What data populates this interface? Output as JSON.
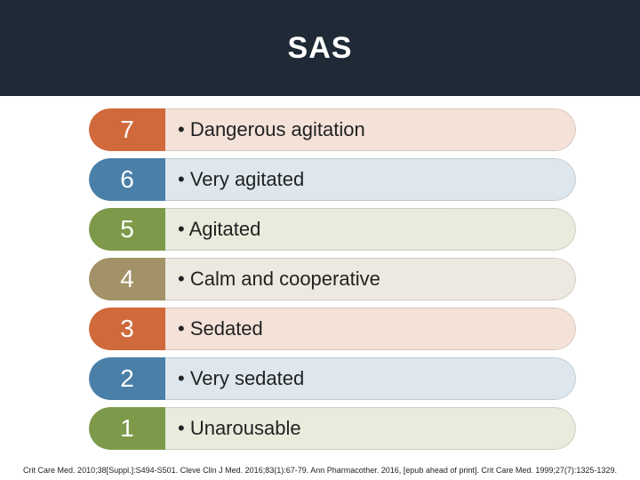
{
  "header": {
    "title": "SAS"
  },
  "rows": [
    {
      "num": "7",
      "desc": "• Dangerous agitation",
      "num_bg": "#d0693b",
      "desc_bg": "#f4e2d8"
    },
    {
      "num": "6",
      "desc": "• Very agitated",
      "num_bg": "#4a80a8",
      "desc_bg": "#dde7ed"
    },
    {
      "num": "5",
      "desc": "• Agitated",
      "num_bg": "#7c9a4a",
      "desc_bg": "#e7ecdc"
    },
    {
      "num": "4",
      "desc": "• Calm and cooperative",
      "num_bg": "#a39168",
      "desc_bg": "#ede9e0"
    },
    {
      "num": "3",
      "desc": "• Sedated",
      "num_bg": "#d0693b",
      "desc_bg": "#f4e2d8"
    },
    {
      "num": "2",
      "desc": "• Very sedated",
      "num_bg": "#4a80a8",
      "desc_bg": "#dde7ed"
    },
    {
      "num": "1",
      "desc": "• Unarousable",
      "num_bg": "#7c9a4a",
      "desc_bg": "#e7ecdc"
    }
  ],
  "citation": "Crit Care Med. 2010;38[Suppl.]:S494-S501. Cleve Clin J Med. 2016;83(1):67-79. Ann Pharmacother. 2016, [epub ahead of print]. Crit Care Med. 1999;27(7):1325-1329."
}
